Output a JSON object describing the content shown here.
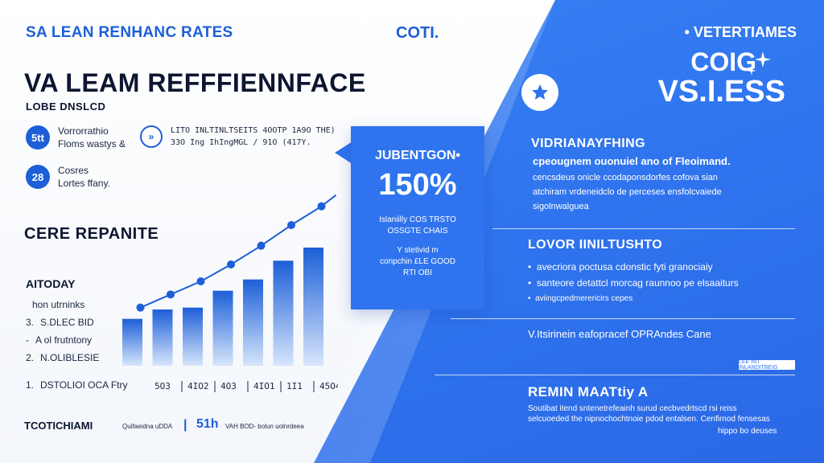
{
  "header": {
    "left": "SA LEAN RENHANC RATES",
    "center": "COTI.",
    "right": "• VETERTIAMES"
  },
  "title": "VA LEAM REFFFIENNFACE",
  "subtitle": "LOBE DNSLCD",
  "stats": [
    {
      "badge": "5tt",
      "line1": "Vorrorrathio",
      "line2": "Floms wastys &"
    },
    {
      "badge": "28",
      "line1": "Cosres",
      "line2": "Lortes ffany."
    }
  ],
  "stat_arrow": {
    "badge": "»",
    "line1": "LITO INLTINLTSEITS 4OOTP 1A9O THE)",
    "line2": "33O Ing IhIngMGL / 91O (417Y."
  },
  "section": {
    "heading": "CERE REPANITE",
    "list_head": "AITODAY",
    "items": [
      {
        "num": "",
        "text": "hon utrninks"
      },
      {
        "num": "3.",
        "text": "S.DLEC BID"
      },
      {
        "num": "-",
        "text": "A ol frutntony"
      },
      {
        "num": "2.",
        "text": "N.OLIBLESIE"
      },
      {
        "num": "1.",
        "text": "DSTOLIOI OCA Ftry"
      }
    ]
  },
  "chart_data": {
    "type": "bar",
    "categories": [
      "",
      "",
      "",
      "",
      "",
      "",
      ""
    ],
    "values": [
      50,
      60,
      62,
      80,
      92,
      112,
      126
    ],
    "line_values": [
      62,
      76,
      90,
      108,
      128,
      150,
      170
    ],
    "x_tick_labels": [
      "5O3",
      "4IO2",
      "4O3",
      "4IO1",
      "1I1",
      "45O4"
    ],
    "ylim": [
      0,
      180
    ],
    "colors": {
      "bar_top": "#1d5fd8",
      "bar_bottom": "#d7e6fb",
      "line": "#1d5fd8"
    }
  },
  "callout": {
    "title": "JUBENTGON•",
    "value": "150%",
    "lines": [
      "Islaniilly COS TRSTO",
      "OSSGTE CHAIS",
      "Y stetivid m",
      "conpchin £LE GOOD",
      "RTI OBI"
    ]
  },
  "hero": {
    "line1": "COIG",
    "line2": "VS.I.ESS"
  },
  "right_sections": {
    "first": {
      "title": "VIDRIANAYFHING",
      "lead": "cpeougnem ouonuiel ano of Fleoimand.",
      "body": [
        "cencsdeus onicle ccodaponsdorfes cofova sian",
        "atchiram vrdeneidclo de perceses ensfolcvaiede",
        "sigolnwalguea"
      ]
    },
    "second": {
      "title": "LOVOR IINILTUSHTO",
      "bullets": [
        "avecriora poctusa cdonstic fyti granociaiy",
        "santeore detattcl morcag raunnoo pe elsaaiturs",
        "aviingcpedmerericirs cepes"
      ]
    },
    "third": {
      "line": "V.Itsirinein eafopracef OPRAndes Cane",
      "pill": "LEE INT INLANDITBEIG"
    },
    "fourth": {
      "title": "REMIN MAATtiy A",
      "body": [
        "Soutibat itend sntenetrefeainh surud cecbvedrtscd rsi reiss",
        "selcuoeded the nipnochochtnoie pdod entalsen. Cenfirnod fensesas",
        "hippo bo deuses"
      ]
    }
  },
  "footer": {
    "left": "TCOTICHIAMI",
    "mid_small": "Quifaeidna uDDA",
    "divider": "|",
    "number": "51h",
    "right_small": "VAH BOD- bolun uolnrdeea"
  }
}
